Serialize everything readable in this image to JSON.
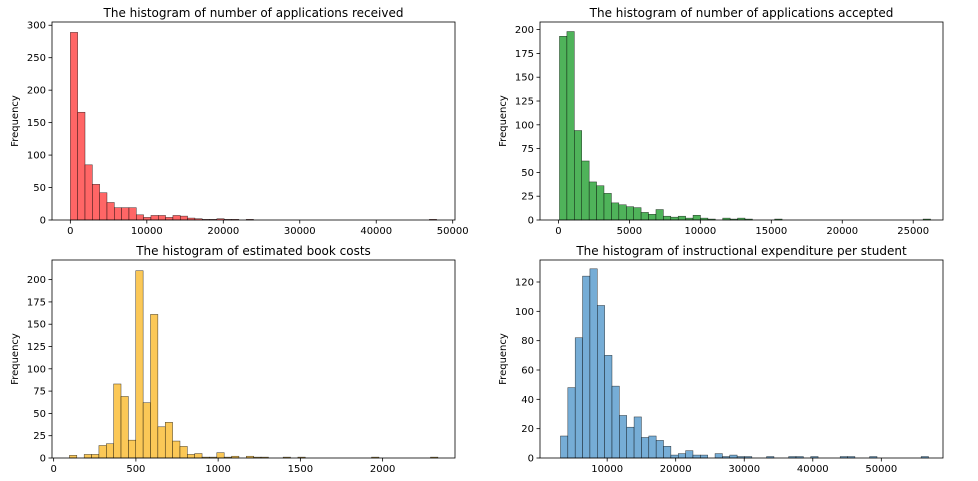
{
  "chart_data": [
    {
      "type": "bar",
      "title": "The histogram of number of applications received",
      "xlabel": "",
      "ylabel": "Frequency",
      "xlim": [
        -2400,
        50300
      ],
      "ylim": [
        0,
        305
      ],
      "xticks": [
        0,
        10000,
        20000,
        30000,
        40000,
        50000
      ],
      "yticks": [
        0,
        50,
        100,
        150,
        200,
        250,
        300
      ],
      "bin_start": 0,
      "bin_width": 958,
      "color": "#ff5555",
      "values": [
        289,
        166,
        85,
        55,
        42,
        27,
        19,
        19,
        19,
        8,
        4,
        7,
        7,
        4,
        7,
        6,
        3,
        2,
        1,
        1,
        2,
        1,
        1,
        0,
        1,
        0,
        0,
        0,
        0,
        0,
        0,
        0,
        0,
        0,
        0,
        0,
        0,
        0,
        0,
        0,
        0,
        0,
        0,
        0,
        0,
        0,
        0,
        0,
        0,
        1
      ]
    },
    {
      "type": "bar",
      "title": "The histogram of number of applications accepted",
      "xlabel": "",
      "ylabel": "Frequency",
      "xlim": [
        -1300,
        27100
      ],
      "ylim": [
        0,
        208
      ],
      "xticks": [
        0,
        5000,
        10000,
        15000,
        20000,
        25000
      ],
      "yticks": [
        0,
        25,
        50,
        75,
        100,
        125,
        150,
        175,
        200
      ],
      "bin_start": 72,
      "bin_width": 523,
      "color": "#3cab48",
      "values": [
        193,
        198,
        94,
        62,
        40,
        36,
        28,
        18,
        16,
        14,
        13,
        8,
        6,
        11,
        4,
        3,
        4,
        2,
        5,
        2,
        1,
        0,
        2,
        1,
        2,
        1,
        0,
        0,
        0,
        1,
        0,
        0,
        0,
        0,
        0,
        0,
        0,
        0,
        0,
        0,
        0,
        0,
        0,
        0,
        0,
        0,
        0,
        0,
        0,
        1
      ]
    },
    {
      "type": "bar",
      "title": "The histogram of estimated book costs",
      "xlabel": "",
      "ylabel": "Frequency",
      "xlim": [
        -10,
        2440
      ],
      "ylim": [
        0,
        222
      ],
      "xticks": [
        0,
        500,
        1000,
        1500,
        2000
      ],
      "yticks": [
        0,
        25,
        50,
        75,
        100,
        125,
        150,
        175,
        200
      ],
      "bin_start": 96,
      "bin_width": 44.8,
      "color": "#fbc245",
      "values": [
        3,
        0,
        4,
        4,
        14,
        16,
        83,
        69,
        20,
        210,
        62,
        161,
        35,
        40,
        19,
        13,
        4,
        5,
        1,
        1,
        6,
        1,
        2,
        0,
        2,
        1,
        1,
        0,
        0,
        1,
        0,
        1,
        0,
        0,
        0,
        0,
        0,
        0,
        0,
        0,
        0,
        1,
        0,
        0,
        0,
        0,
        0,
        0,
        0,
        1
      ]
    },
    {
      "type": "bar",
      "title": "The histogram of instructional expenditure per student",
      "xlabel": "",
      "ylabel": "Frequency",
      "xlim": [
        200,
        59000
      ],
      "ylim": [
        0,
        135
      ],
      "xticks": [
        10000,
        20000,
        30000,
        40000,
        50000
      ],
      "yticks": [
        0,
        20,
        40,
        60,
        80,
        100,
        120
      ],
      "bin_start": 3186,
      "bin_width": 1074,
      "color": "#67a4d2",
      "values": [
        15,
        48,
        82,
        124,
        129,
        104,
        70,
        49,
        29,
        21,
        28,
        14,
        15,
        12,
        8,
        2,
        3,
        5,
        2,
        2,
        0,
        3,
        1,
        2,
        1,
        1,
        0,
        0,
        1,
        0,
        0,
        1,
        1,
        0,
        1,
        0,
        0,
        0,
        1,
        1,
        0,
        0,
        1,
        0,
        0,
        0,
        0,
        0,
        0,
        1
      ]
    }
  ]
}
